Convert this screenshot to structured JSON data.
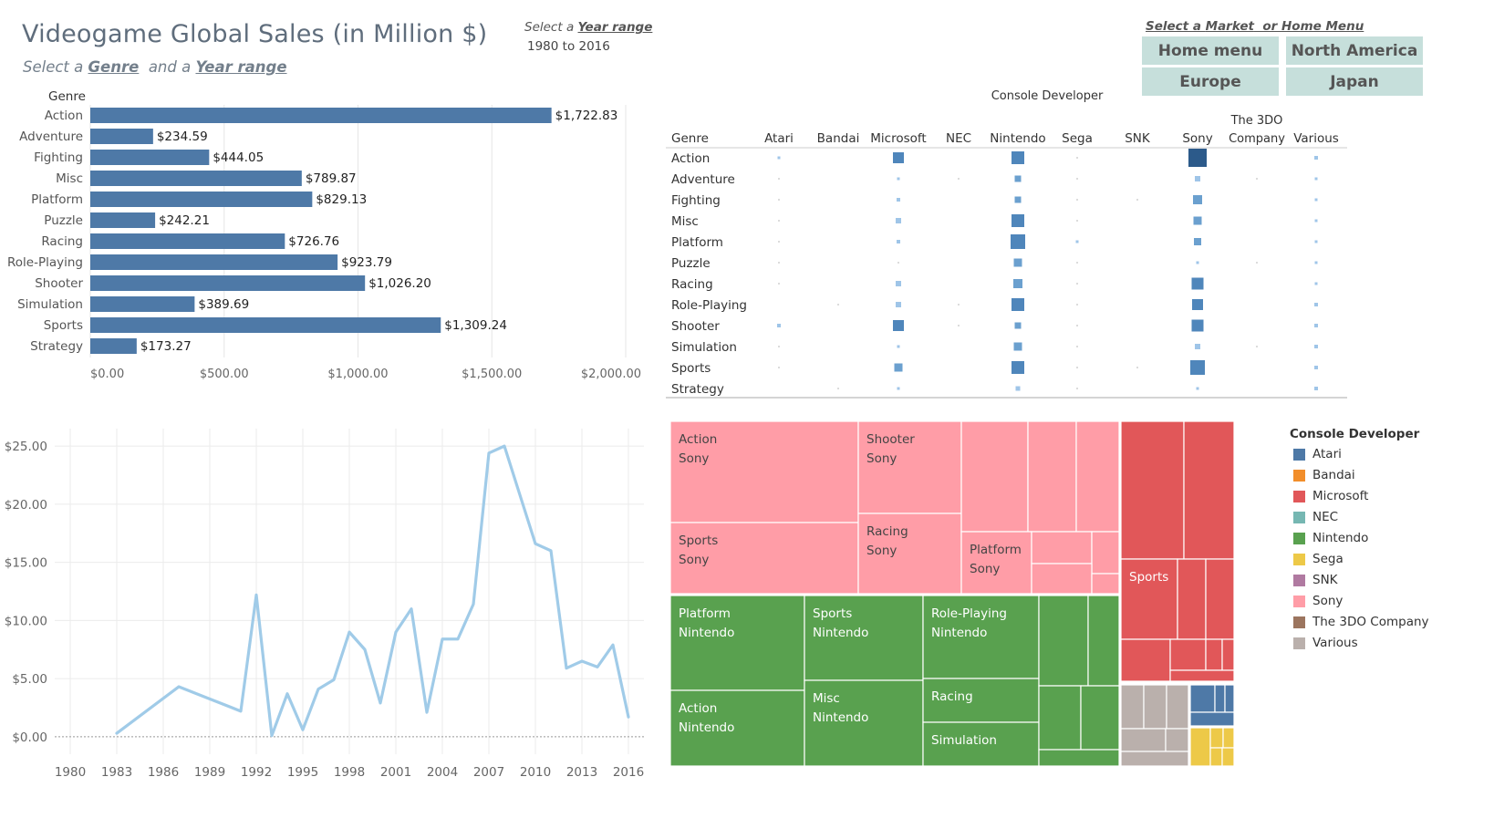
{
  "header": {
    "title": "Videogame Global Sales (in Million $)",
    "subtitle_pre": "Select a ",
    "subtitle_genre": "Genre",
    "subtitle_mid": "  and a ",
    "subtitle_year": "Year range",
    "year_select_pre": "Select a ",
    "year_select_link": "Year range",
    "year_range_value": "1980 to 2016"
  },
  "market": {
    "label_pre": "Select a ",
    "label_market": "Market",
    "label_mid": "  or ",
    "label_home": "Home Menu",
    "buttons": [
      "Home menu",
      "North America",
      "Europe",
      "Japan"
    ]
  },
  "colors": {
    "bar": "#4e79a7",
    "line": "#a0cbe8",
    "accent_button": "#c6dfdb",
    "sony": "#ff9da7",
    "nintendo": "#59a14f",
    "microsoft": "#e15759"
  },
  "chart_data": [
    {
      "type": "bar",
      "orientation": "horizontal",
      "ylabel": "Genre",
      "categories": [
        "Action",
        "Adventure",
        "Fighting",
        "Misc",
        "Platform",
        "Puzzle",
        "Racing",
        "Role-Playing",
        "Shooter",
        "Simulation",
        "Sports",
        "Strategy"
      ],
      "values": [
        1722.83,
        234.59,
        444.05,
        789.87,
        829.13,
        242.21,
        726.76,
        923.79,
        1026.2,
        389.69,
        1309.24,
        173.27
      ],
      "value_labels": [
        "$1,722.83",
        "$234.59",
        "$444.05",
        "$789.87",
        "$829.13",
        "$242.21",
        "$726.76",
        "$923.79",
        "$1,026.20",
        "$389.69",
        "$1,309.24",
        "$173.27"
      ],
      "xlim": [
        0,
        2000
      ],
      "xticks": [
        0,
        500,
        1000,
        1500,
        2000
      ],
      "xtick_labels": [
        "$0.00",
        "$500.00",
        "$1,000.00",
        "$1,500.00",
        "$2,000.00"
      ],
      "grid": true
    },
    {
      "type": "heatmap",
      "title": "Console Developer",
      "row_header": "Genre",
      "rows": [
        "Action",
        "Adventure",
        "Fighting",
        "Misc",
        "Platform",
        "Puzzle",
        "Racing",
        "Role-Playing",
        "Shooter",
        "Simulation",
        "Sports",
        "Strategy"
      ],
      "columns": [
        "Atari",
        "Bandai",
        "Microsoft",
        "NEC",
        "Nintendo",
        "Sega",
        "SNK",
        "Sony",
        "The 3DO Company",
        "Various"
      ],
      "column_labels": [
        "Atari",
        "Bandai",
        "Microsoft",
        "NEC",
        "Nintendo",
        "Sega",
        "SNK",
        "Sony",
        "The 3DO\nCompany",
        "Various"
      ],
      "values": [
        [
          3,
          0,
          12,
          0,
          14,
          1,
          0,
          20,
          0,
          4
        ],
        [
          1,
          0,
          3,
          1,
          7,
          1,
          0,
          6,
          1,
          2
        ],
        [
          1,
          0,
          4,
          0,
          7,
          1,
          1,
          10,
          0,
          2
        ],
        [
          1,
          0,
          6,
          0,
          14,
          1,
          0,
          9,
          0,
          2
        ],
        [
          1,
          0,
          4,
          0,
          16,
          3,
          0,
          8,
          0,
          2
        ],
        [
          1,
          0,
          1,
          0,
          9,
          1,
          0,
          3,
          1,
          2
        ],
        [
          1,
          0,
          6,
          0,
          10,
          1,
          0,
          13,
          0,
          2
        ],
        [
          0,
          1,
          6,
          1,
          14,
          1,
          0,
          12,
          0,
          4
        ],
        [
          4,
          0,
          12,
          1,
          7,
          1,
          0,
          13,
          0,
          4
        ],
        [
          1,
          0,
          3,
          0,
          9,
          1,
          0,
          6,
          1,
          4
        ],
        [
          1,
          0,
          9,
          0,
          14,
          1,
          1,
          16,
          0,
          4
        ],
        [
          0,
          1,
          2,
          0,
          5,
          1,
          0,
          3,
          0,
          4
        ]
      ]
    },
    {
      "type": "line",
      "x": [
        1983,
        1987,
        1991,
        1992,
        1993,
        1994,
        1995,
        1996,
        1997,
        1998,
        1999,
        2000,
        2001,
        2002,
        2003,
        2004,
        2005,
        2006,
        2007,
        2008,
        2009,
        2010,
        2011,
        2012,
        2013,
        2014,
        2015,
        2016
      ],
      "y": [
        0.3,
        4.3,
        2.2,
        12.2,
        0.1,
        3.7,
        0.6,
        4.1,
        4.9,
        9.0,
        7.5,
        2.9,
        9.0,
        11.0,
        2.1,
        8.4,
        8.4,
        11.4,
        24.4,
        25.0,
        20.8,
        16.6,
        16.0,
        5.9,
        6.5,
        6.0,
        7.9,
        1.7
      ],
      "xlim": [
        1979,
        2017
      ],
      "ylim": [
        -1.5,
        26.5
      ],
      "xticks": [
        1980,
        1983,
        1986,
        1989,
        1992,
        1995,
        1998,
        2001,
        2004,
        2007,
        2010,
        2013,
        2016
      ],
      "xtick_labels": [
        "1980",
        "1983",
        "1986",
        "1989",
        "1992",
        "1995",
        "1998",
        "2001",
        "2004",
        "2007",
        "2010",
        "2013",
        "2016"
      ],
      "yticks": [
        0,
        5,
        10,
        15,
        20,
        25
      ],
      "ytick_labels": [
        "$0.00",
        "$5.00",
        "$10.00",
        "$15.00",
        "$20.00",
        "$25.00"
      ],
      "grid": true
    },
    {
      "type": "treemap",
      "groups": [
        {
          "developer": "Sony",
          "color": "#ff9da7",
          "tiles": [
            {
              "label": "Action",
              "sub": "Sony"
            },
            {
              "label": "Shooter",
              "sub": "Sony"
            },
            {
              "label": "Sports",
              "sub": "Sony"
            },
            {
              "label": "Racing",
              "sub": "Sony"
            },
            {
              "label": "Platform",
              "sub": "Sony"
            }
          ]
        },
        {
          "developer": "Nintendo",
          "color": "#59a14f",
          "tiles": [
            {
              "label": "Platform",
              "sub": "Nintendo"
            },
            {
              "label": "Sports",
              "sub": "Nintendo"
            },
            {
              "label": "Role-Playing",
              "sub": "Nintendo"
            },
            {
              "label": "Action",
              "sub": "Nintendo"
            },
            {
              "label": "Misc",
              "sub": "Nintendo"
            },
            {
              "label": "Racing",
              "sub": ""
            },
            {
              "label": "Simulation",
              "sub": ""
            }
          ]
        },
        {
          "developer": "Microsoft",
          "color": "#e15759",
          "tiles": [
            {
              "label": "Sports",
              "sub": ""
            }
          ]
        }
      ]
    }
  ],
  "legend": {
    "title": "Console Developer",
    "items": [
      {
        "name": "Atari",
        "color": "#4e79a7"
      },
      {
        "name": "Bandai",
        "color": "#f28e2b"
      },
      {
        "name": "Microsoft",
        "color": "#e15759"
      },
      {
        "name": "NEC",
        "color": "#76b7b2"
      },
      {
        "name": "Nintendo",
        "color": "#59a14f"
      },
      {
        "name": "Sega",
        "color": "#edc948"
      },
      {
        "name": "SNK",
        "color": "#b07aa1"
      },
      {
        "name": "Sony",
        "color": "#ff9da7"
      },
      {
        "name": "The 3DO Company",
        "color": "#9c755f"
      },
      {
        "name": "Various",
        "color": "#bab0ac"
      }
    ]
  }
}
